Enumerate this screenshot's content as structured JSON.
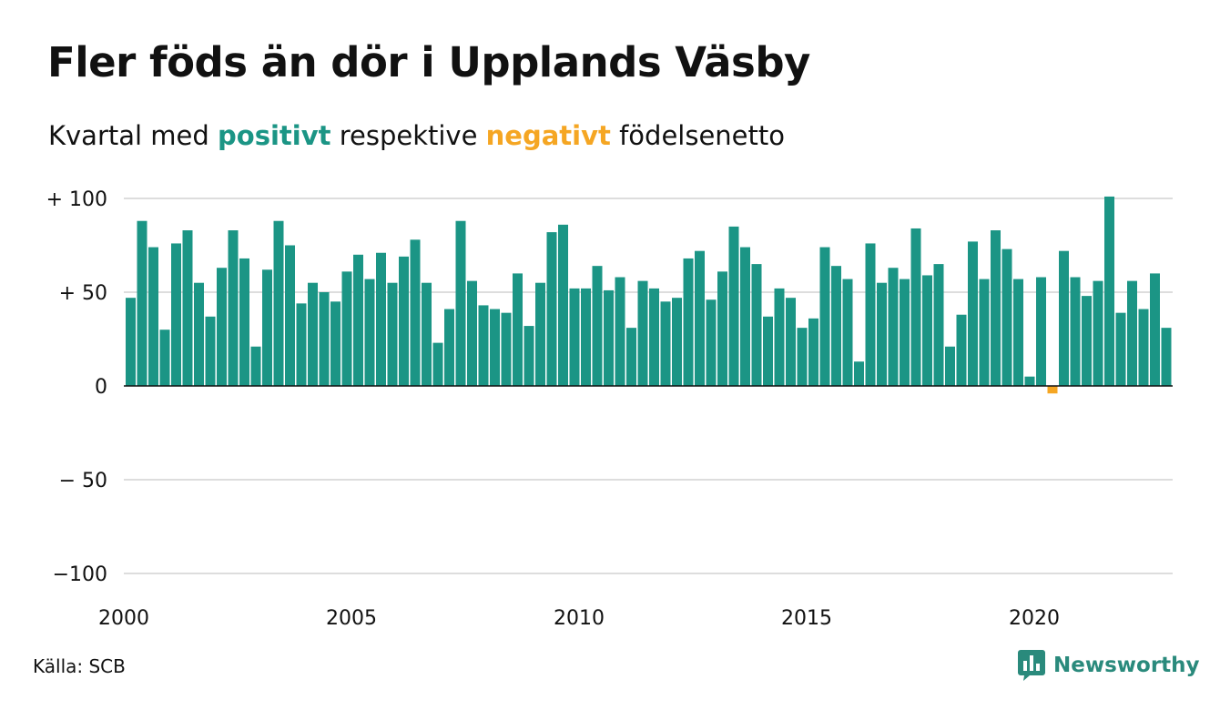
{
  "header": {
    "title": "Fler föds än dör i Upplands Väsby",
    "subtitle_pre": "Kvartal med",
    "subtitle_positive": "positivt",
    "subtitle_mid": "respektive",
    "subtitle_negative": "negativt",
    "subtitle_post": "födelsenetto"
  },
  "footer": {
    "source": "Källa: SCB",
    "brand": "Newsworthy",
    "brand_icon": "newsworthy-logo-icon"
  },
  "colors": {
    "positive": "#1b9585",
    "negative": "#f5a623",
    "grid": "#dddddd",
    "text": "#111111",
    "brand": "#2a8a7c"
  },
  "chart_data": {
    "type": "bar",
    "title": "Fler föds än dör i Upplands Väsby",
    "subtitle": "Kvartal med positivt respektive negativt födelsenetto",
    "x_start": "2000 Q1",
    "frequency": "quarterly",
    "x_ticks": [
      "2000",
      "2005",
      "2010",
      "2015",
      "2020"
    ],
    "y_ticks": [
      {
        "value": 100,
        "label": "+ 100"
      },
      {
        "value": 50,
        "label": "+  50"
      },
      {
        "value": 0,
        "label": "0"
      },
      {
        "value": -50,
        "label": "− 50"
      },
      {
        "value": -100,
        "label": "−100"
      }
    ],
    "ylim": [
      -100,
      100
    ],
    "grid": true,
    "series": [
      {
        "values": [
          47,
          88,
          74,
          30,
          76,
          83,
          55,
          37,
          63,
          83,
          68,
          21,
          62,
          88,
          75,
          44,
          55,
          50,
          45,
          61,
          70,
          57,
          71,
          55,
          69,
          78,
          55,
          23,
          41,
          88,
          56,
          43,
          41,
          39,
          60,
          32,
          55,
          82,
          86,
          52,
          52,
          64,
          51,
          58,
          31,
          56,
          52,
          45,
          47,
          68,
          72,
          46,
          61,
          85,
          74,
          65,
          37,
          52,
          47,
          31,
          36,
          74,
          64,
          57,
          13,
          76,
          55,
          63,
          57,
          84,
          59,
          65,
          21,
          38,
          77,
          57,
          83,
          73,
          57,
          5,
          58,
          -4,
          72,
          58,
          48,
          56,
          101,
          39,
          56,
          41,
          60,
          31
        ]
      }
    ]
  }
}
